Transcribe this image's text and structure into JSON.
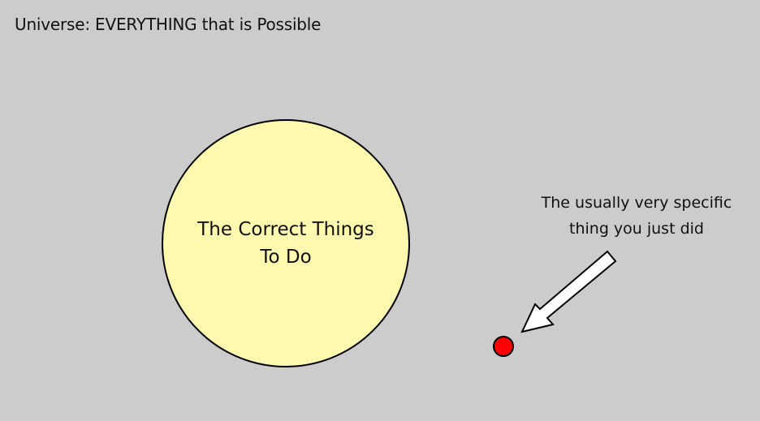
{
  "universe": {
    "label": "Universe: EVERYTHING that is Possible"
  },
  "correct_set": {
    "label_line1": "The Correct Things",
    "label_line2": "To Do"
  },
  "specific_action": {
    "label_line1": "The usually very specific",
    "label_line2": "thing you just did"
  },
  "colors": {
    "background": "#cccccc",
    "correct_circle_fill": "#fff9b0",
    "specific_dot_fill": "#ff0000",
    "arrow_fill": "#ffffff",
    "outline": "#000000"
  }
}
